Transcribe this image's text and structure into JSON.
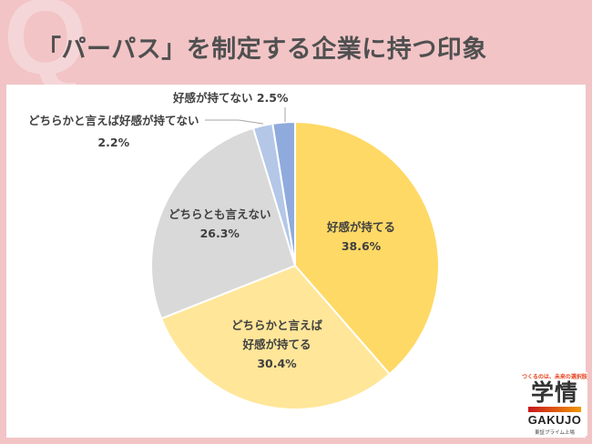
{
  "header": {
    "q_mark": "Q",
    "title": "「パーパス」を制定する企業に持つ印象"
  },
  "chart_data": {
    "type": "pie",
    "title": "「パーパス」を制定する企業に持つ印象",
    "start_angle": "12 o'clock, clockwise",
    "slices": [
      {
        "label": "好感が持てる",
        "value": 38.6,
        "display": "38.6%",
        "color": "#FFD966"
      },
      {
        "label": "どちらかと言えば好感が持てる",
        "value": 30.4,
        "display": "30.4%",
        "color": "#FFE699"
      },
      {
        "label": "どちらとも言えない",
        "value": 26.3,
        "display": "26.3%",
        "color": "#D9D9D9"
      },
      {
        "label": "どちらかと言えば好感が持てない",
        "value": 2.2,
        "display": "2.2%",
        "color": "#B4C7E7"
      },
      {
        "label": "好感が持てない",
        "value": 2.5,
        "display": "2.5%",
        "color": "#8FAADC"
      }
    ]
  },
  "labels": {
    "s0_line1": "好感が持てる",
    "s0_line2": "38.6%",
    "s1_line1": "どちらかと言えば",
    "s1_line2": "好感が持てる",
    "s1_line3": "30.4%",
    "s2_line1": "どちらとも言えない",
    "s2_line2": "26.3%",
    "s3_line1": "どちらかと言えば好感が持てない",
    "s3_line2": "2.2%",
    "s4_line1": "好感が持てない 2.5%"
  },
  "logo": {
    "tagline": "つくるのは、未来の選択肢",
    "kanji": "学情",
    "english": "GAKUJO",
    "sub": "東証プライム上場"
  }
}
